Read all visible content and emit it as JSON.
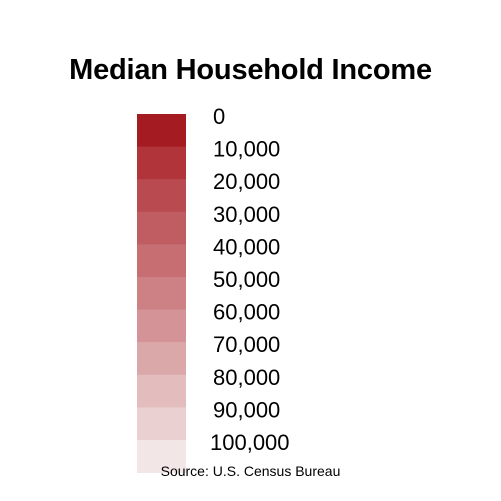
{
  "chart_data": {
    "type": "legend",
    "title": "Median Household Income",
    "source": "Source: U.S. Census Bureau",
    "bins": [
      {
        "label": "0",
        "value": 0,
        "color": "#a51b22"
      },
      {
        "label": "10,000",
        "value": 10000,
        "color": "#b1343a"
      },
      {
        "label": "20,000",
        "value": 20000,
        "color": "#b84a50"
      },
      {
        "label": "30,000",
        "value": 30000,
        "color": "#c05d62"
      },
      {
        "label": "40,000",
        "value": 40000,
        "color": "#c76e73"
      },
      {
        "label": "50,000",
        "value": 50000,
        "color": "#cd8184"
      },
      {
        "label": "60,000",
        "value": 60000,
        "color": "#d49497"
      },
      {
        "label": "70,000",
        "value": 70000,
        "color": "#dba8aa"
      },
      {
        "label": "80,000",
        "value": 80000,
        "color": "#e3bcbe"
      },
      {
        "label": "90,000",
        "value": 90000,
        "color": "#ead0d1"
      },
      {
        "label": "100,000",
        "value": 100000,
        "color": "#f3e6e6"
      }
    ]
  }
}
